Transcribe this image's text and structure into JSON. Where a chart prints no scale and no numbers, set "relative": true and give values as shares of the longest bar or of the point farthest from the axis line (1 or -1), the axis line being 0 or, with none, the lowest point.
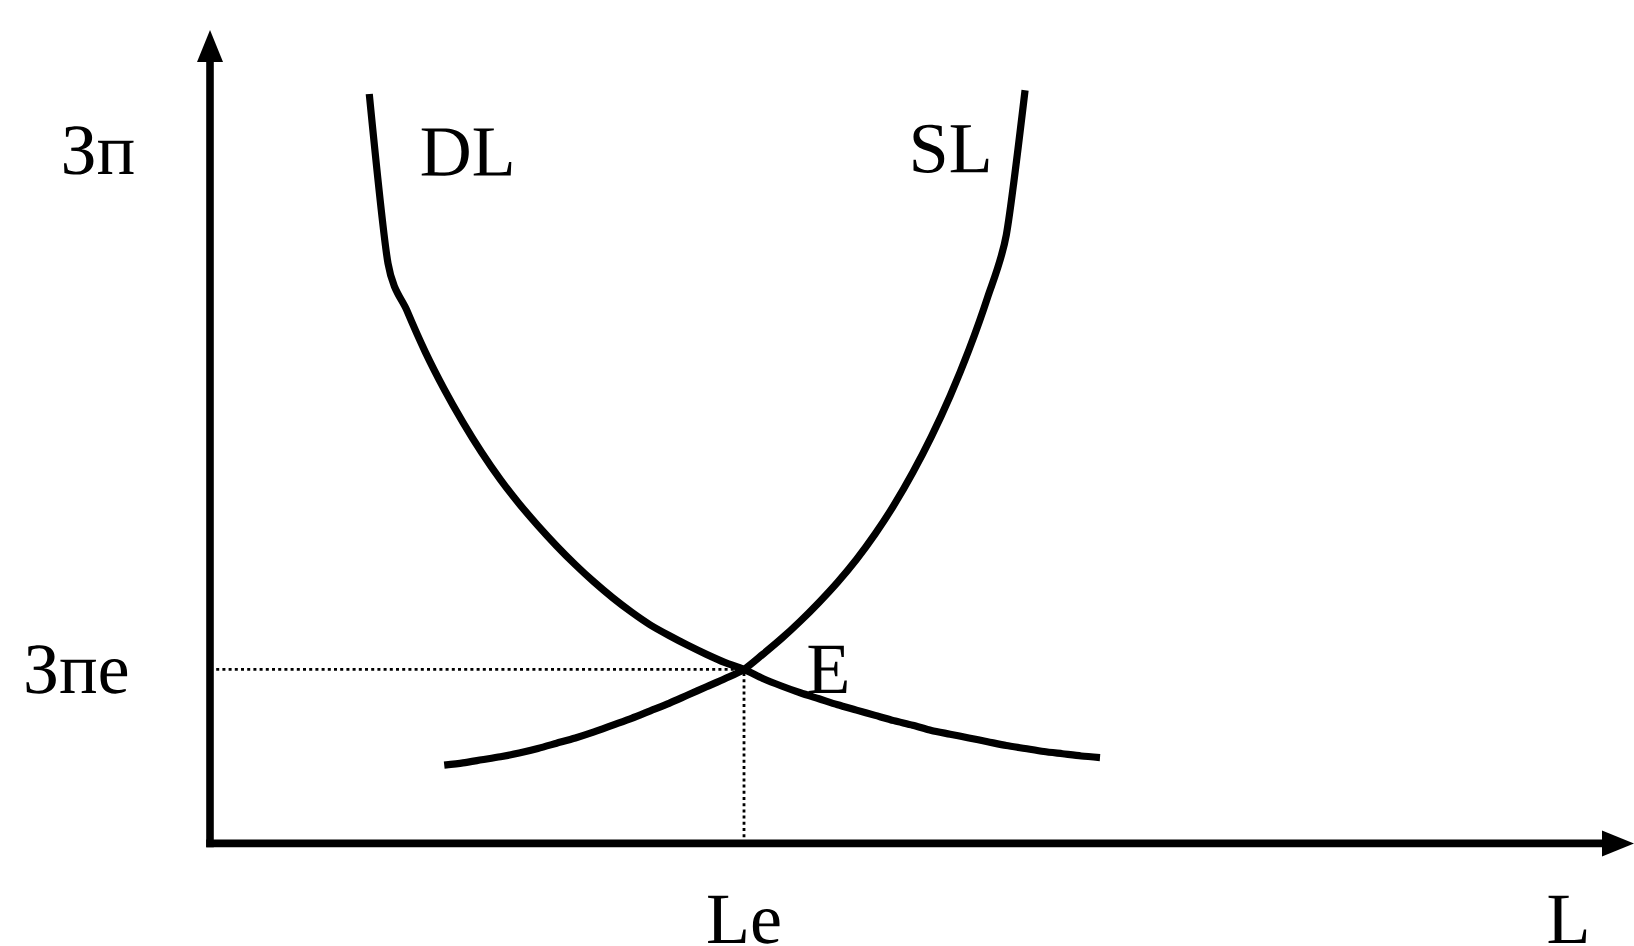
{
  "chart_data": {
    "type": "line",
    "relative": true,
    "xlabel": "L",
    "ylabel": "Зп",
    "categories": [
      null,
      null,
      null,
      null,
      null,
      null,
      null,
      null,
      null,
      null,
      null,
      null,
      null,
      null,
      null,
      null,
      null,
      null,
      null,
      null,
      null,
      null,
      null,
      null,
      null,
      null,
      null,
      null,
      null,
      null,
      null,
      null,
      null,
      null,
      null,
      null,
      null,
      null,
      null,
      null,
      null,
      null,
      null,
      null,
      null,
      null,
      null,
      null,
      null,
      null,
      null,
      null,
      null,
      null,
      null,
      null,
      null,
      null,
      null,
      null,
      null,
      null,
      null,
      null,
      null,
      null,
      null,
      null,
      null,
      null,
      null,
      null,
      null,
      null,
      null,
      null
    ],
    "series": [
      {
        "name": "DL",
        "color": "#000000",
        "values": [
          null,
          null,
          null,
          null,
          null,
          null,
          null,
          null,
          0.995,
          0.77,
          0.708,
          0.652,
          0.603,
          0.559,
          0.519,
          0.483,
          0.451,
          0.422,
          0.395,
          0.37,
          0.347,
          0.326,
          0.307,
          0.29,
          0.276,
          0.263,
          0.251,
          0.24,
          0.231,
          0.219,
          0.209,
          0.2,
          0.192,
          0.184,
          0.177,
          0.17,
          0.163,
          0.157,
          0.15,
          0.145,
          0.14,
          0.135,
          0.13,
          0.126,
          0.122,
          0.119,
          0.116,
          0.114,
          null,
          null,
          null,
          null,
          null,
          null,
          null,
          null,
          null,
          null,
          null,
          null,
          null,
          null,
          null,
          null,
          null,
          null,
          null,
          null,
          null,
          null,
          null,
          null,
          null,
          null,
          null,
          null
        ]
      },
      {
        "name": "SL",
        "color": "#000000",
        "values": [
          null,
          null,
          null,
          null,
          null,
          null,
          null,
          null,
          null,
          null,
          null,
          null,
          0.104,
          0.107,
          0.111,
          0.115,
          0.12,
          0.126,
          0.133,
          0.14,
          0.148,
          0.157,
          0.166,
          0.176,
          0.186,
          0.197,
          0.208,
          0.219,
          0.231,
          0.251,
          0.272,
          0.295,
          0.32,
          0.347,
          0.377,
          0.411,
          0.449,
          0.492,
          0.54,
          0.594,
          0.655,
          0.725,
          0.808,
          1.0,
          null,
          null,
          null,
          null,
          null,
          null,
          null,
          null,
          null,
          null,
          null,
          null,
          null,
          null,
          null,
          null,
          null,
          null,
          null,
          null,
          null,
          null,
          null,
          null,
          null,
          null,
          null,
          null,
          null,
          null,
          null,
          null
        ]
      }
    ],
    "ref_lines": [
      {
        "axis": "y",
        "value": 0.231,
        "label": "Зпе",
        "line_style": "dotted"
      }
    ],
    "annotations": [
      "E",
      "Le"
    ],
    "marker": "none",
    "line_style": "solid"
  }
}
